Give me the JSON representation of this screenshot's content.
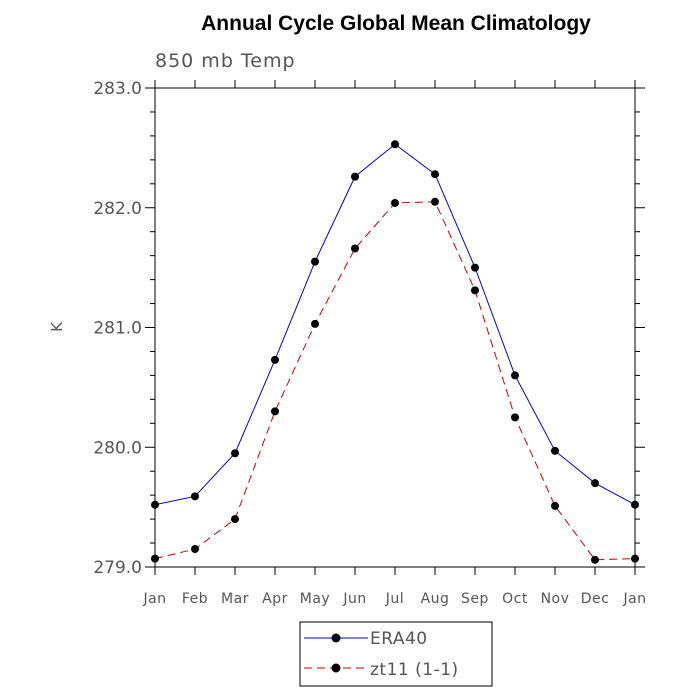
{
  "chart_data": {
    "type": "line",
    "title": "Annual Cycle Global Mean Climatology",
    "subtitle": "850 mb Temp",
    "xlabel": "",
    "ylabel": "K",
    "categories": [
      "Jan",
      "Feb",
      "Mar",
      "Apr",
      "May",
      "Jun",
      "Jul",
      "Aug",
      "Sep",
      "Oct",
      "Nov",
      "Dec",
      "Jan"
    ],
    "ylim": [
      279.0,
      283.0
    ],
    "yticks": [
      "279.0",
      "280.0",
      "281.0",
      "282.0",
      "283.0"
    ],
    "grid": false,
    "legend_position": "bottom-center",
    "series": [
      {
        "name": "ERA40",
        "color": "#0000cc",
        "dash": "solid",
        "marker": "circle",
        "values": [
          279.52,
          279.59,
          279.95,
          280.73,
          281.55,
          282.26,
          282.53,
          282.28,
          281.5,
          280.6,
          279.97,
          279.7,
          279.52
        ]
      },
      {
        "name": "zt11 (1-1)",
        "color": "#cc0000",
        "dash": "dashed",
        "marker": "circle",
        "values": [
          279.07,
          279.15,
          279.4,
          280.3,
          281.03,
          281.66,
          282.04,
          282.05,
          281.31,
          280.25,
          279.51,
          279.06,
          279.07
        ]
      }
    ]
  }
}
